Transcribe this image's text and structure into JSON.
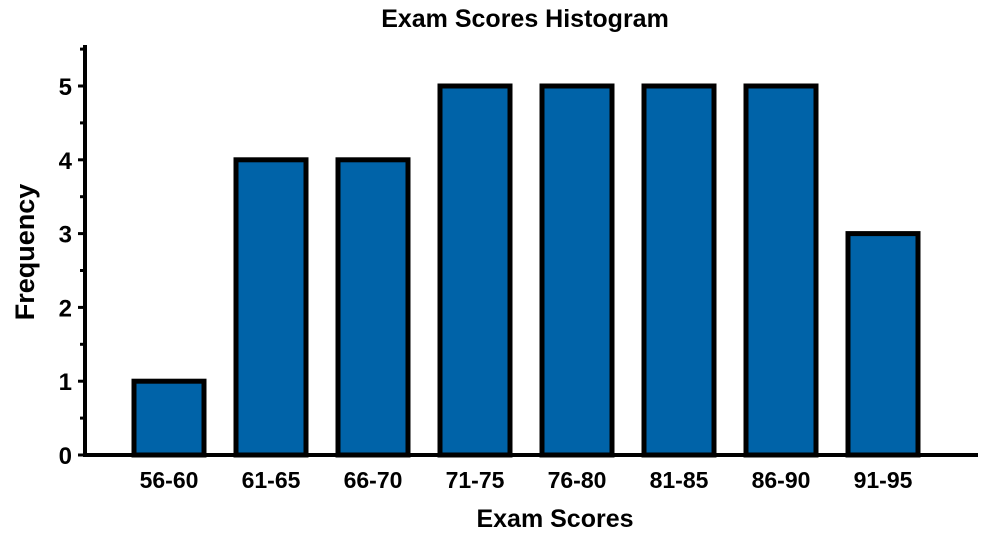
{
  "chart_data": {
    "type": "bar",
    "title": "Exam Scores Histogram",
    "xlabel": "Exam Scores",
    "ylabel": "Frequency",
    "categories": [
      "56-60",
      "61-65",
      "66-70",
      "71-75",
      "76-80",
      "81-85",
      "86-90",
      "91-95"
    ],
    "values": [
      1,
      4,
      4,
      5,
      5,
      5,
      5,
      3
    ],
    "ylim": [
      0,
      5.5
    ],
    "yticks": [
      0,
      1,
      2,
      3,
      4,
      5
    ],
    "grid": false,
    "legend": "none",
    "colors": {
      "bar_fill": "#0063A8",
      "bar_stroke": "#000000",
      "axis": "#000000",
      "text": "#000000"
    }
  }
}
